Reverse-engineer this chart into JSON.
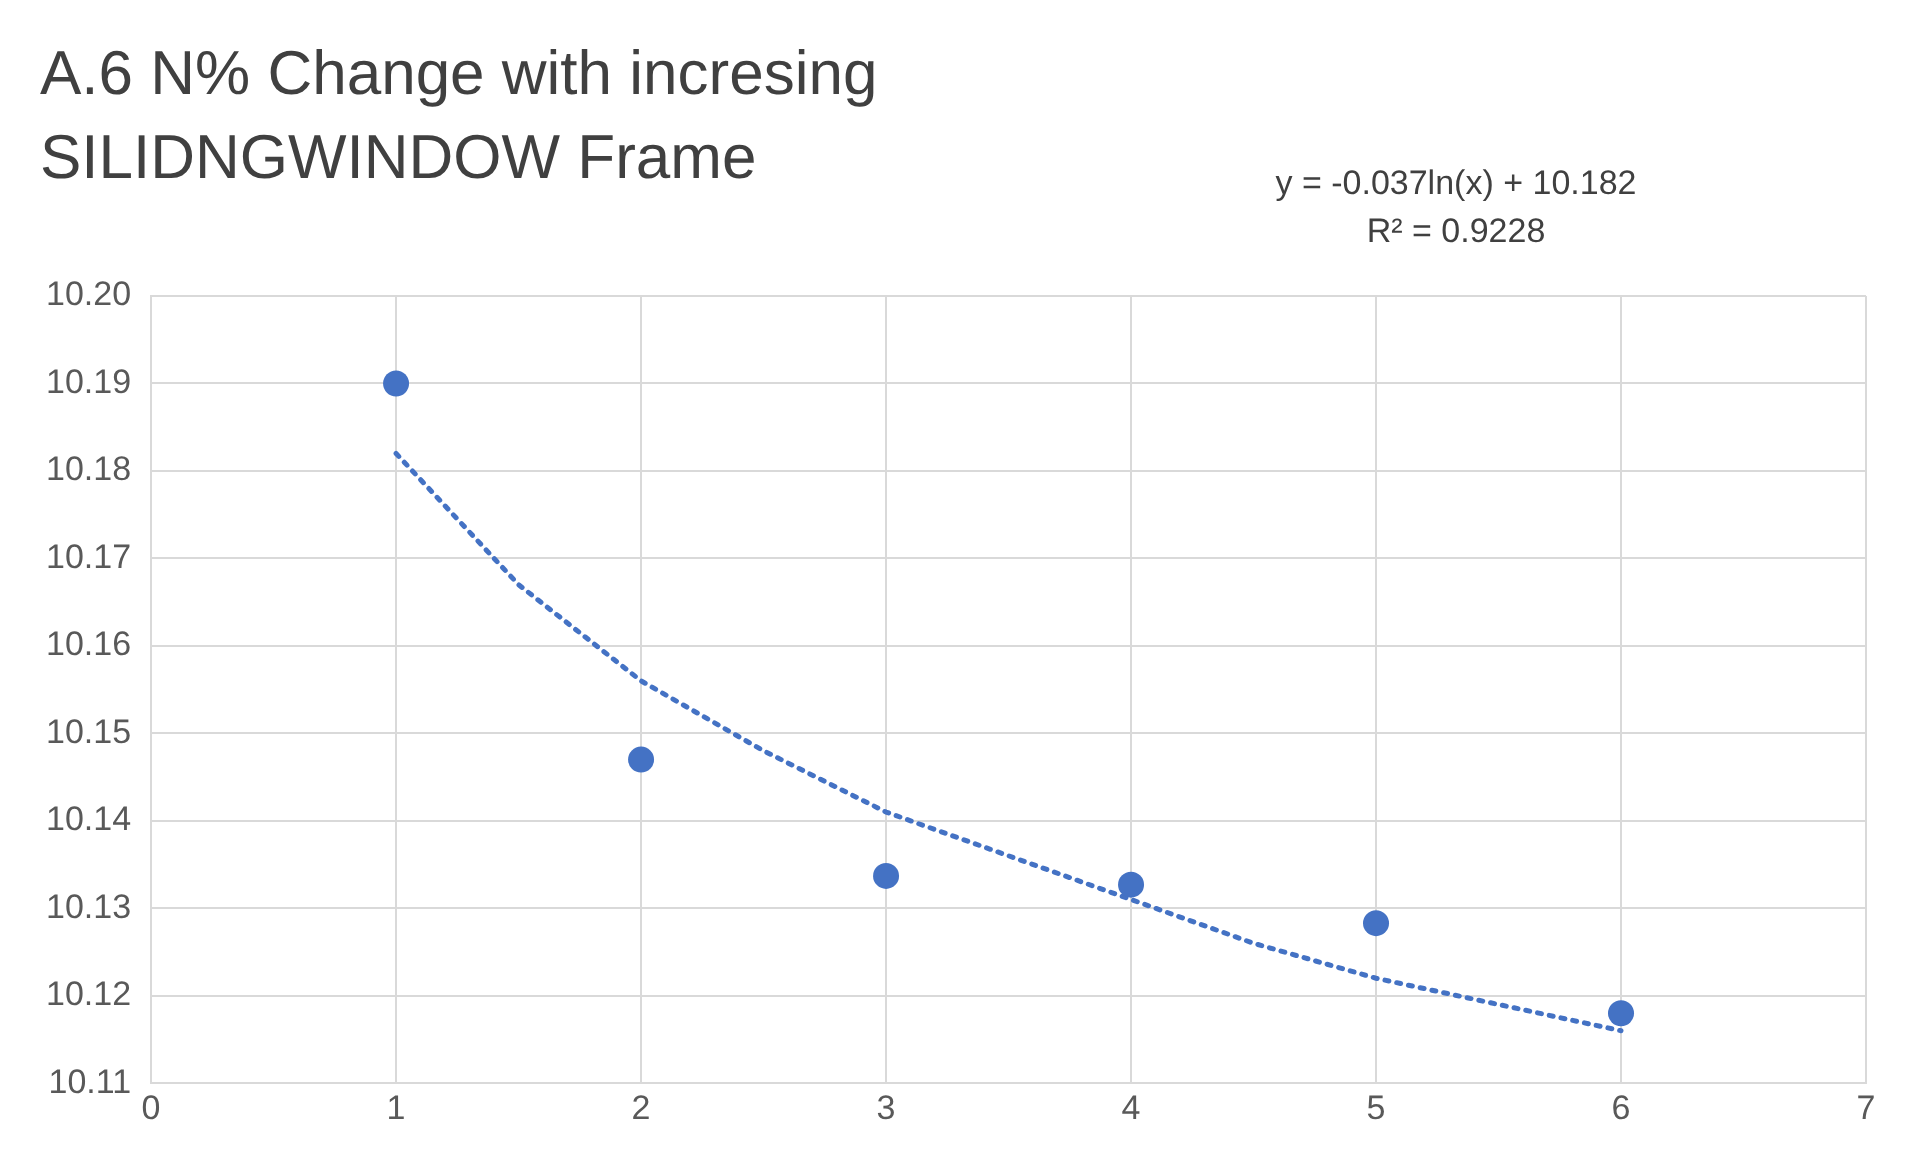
{
  "chart_data": {
    "type": "scatter",
    "title": "A.6 N% Change with incresing SILIDNGWINDOW Frame",
    "annotations": [
      "y = -0.037ln(x) + 10.182",
      "R² = 0.9228"
    ],
    "series": [
      {
        "type": "scatter",
        "color": "#4472c4",
        "marker": "circle",
        "x": [
          1,
          2,
          3,
          4,
          5,
          6
        ],
        "values": [
          10.19,
          10.147,
          10.1337,
          10.1327,
          10.1283,
          10.118
        ]
      },
      {
        "type": "line",
        "color": "#4472c4",
        "marker": "none",
        "line_style": "dotted",
        "x": [
          1,
          1.5,
          2,
          2.5,
          3,
          3.5,
          4,
          4.5,
          5,
          5.5,
          6
        ],
        "values": [
          10.182,
          10.167,
          10.156,
          10.148,
          10.141,
          10.136,
          10.131,
          10.126,
          10.122,
          10.119,
          10.116
        ]
      }
    ],
    "xlim": [
      0,
      7
    ],
    "xticks": [
      0,
      1,
      2,
      3,
      4,
      5,
      6,
      7
    ],
    "ylim": [
      10.11,
      10.2
    ],
    "yticks": [
      10.11,
      10.12,
      10.13,
      10.14,
      10.15,
      10.16,
      10.17,
      10.18,
      10.19,
      {
        "value": 10.2,
        "label": "10.20"
      }
    ],
    "grid": true,
    "legend": false
  }
}
